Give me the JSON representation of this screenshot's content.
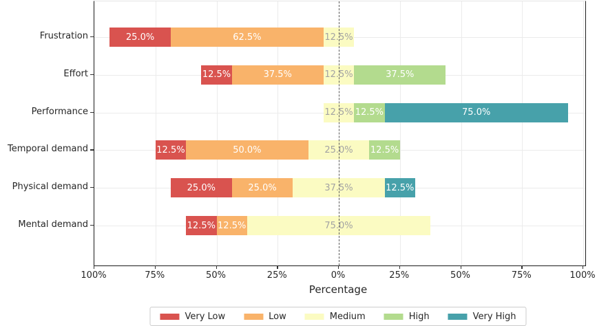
{
  "chart_data": {
    "type": "diverging_stacked_bar",
    "title": "",
    "xlabel": "Percentage",
    "orientation": "horizontal",
    "center_split_series": "Medium",
    "grid": true,
    "legend_position": "bottom-center",
    "categories": [
      "Frustration",
      "Effort",
      "Performance",
      "Temporal demand",
      "Physical demand",
      "Mental demand"
    ],
    "series": [
      {
        "name": "Very Low",
        "color": "#d9534f",
        "label_color": "#ffffff",
        "values": [
          25.0,
          12.5,
          0,
          12.5,
          25.0,
          12.5
        ]
      },
      {
        "name": "Low",
        "color": "#f9b36a",
        "label_color": "#ffffff",
        "values": [
          62.5,
          37.5,
          0,
          50.0,
          25.0,
          12.5
        ]
      },
      {
        "name": "Medium",
        "color": "#fbfbc2",
        "label_color": "#a3a3a3",
        "values": [
          12.5,
          12.5,
          12.5,
          25.0,
          37.5,
          75.0
        ]
      },
      {
        "name": "High",
        "color": "#b3db8e",
        "label_color": "#ffffff",
        "values": [
          0,
          37.5,
          12.5,
          12.5,
          0,
          0
        ]
      },
      {
        "name": "Very High",
        "color": "#47a1aa",
        "label_color": "#ffffff",
        "values": [
          0,
          0,
          75.0,
          0,
          12.5,
          0
        ]
      }
    ],
    "x_ticks": [
      {
        "value": -100,
        "label": "100%"
      },
      {
        "value": -75,
        "label": "75%"
      },
      {
        "value": -50,
        "label": "50%"
      },
      {
        "value": -25,
        "label": "25%"
      },
      {
        "value": 0,
        "label": "0%"
      },
      {
        "value": 25,
        "label": "25%"
      },
      {
        "value": 50,
        "label": "50%"
      },
      {
        "value": 75,
        "label": "75%"
      },
      {
        "value": 100,
        "label": "100%"
      }
    ],
    "xlim": [
      -100,
      100.8
    ],
    "zero_line": {
      "style": "dashed",
      "color": "#5a5a5a"
    }
  }
}
